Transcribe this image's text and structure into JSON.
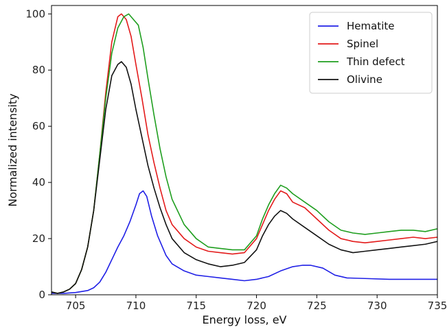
{
  "chart_data": {
    "type": "line",
    "title": "",
    "xlabel": "Energy loss, eV",
    "ylabel": "Normalized intensity",
    "xlim": [
      703,
      735
    ],
    "ylim": [
      0,
      103
    ],
    "x_ticks": [
      705,
      710,
      715,
      720,
      725,
      730,
      735
    ],
    "y_ticks": [
      0,
      20,
      40,
      60,
      80,
      100
    ],
    "grid": false,
    "legend": "top-right",
    "series": [
      {
        "name": "Hematite",
        "color": "#1f1fe6",
        "x": [
          703,
          704,
          705,
          706,
          706.5,
          707,
          707.5,
          708,
          708.5,
          709,
          709.5,
          710,
          710.3,
          710.6,
          710.9,
          711.3,
          711.8,
          712.5,
          713,
          714,
          715,
          716,
          717,
          718,
          719,
          720,
          721,
          722,
          723,
          723.8,
          724.5,
          725.5,
          726.5,
          727.5,
          729,
          731,
          733,
          735
        ],
        "y": [
          0.5,
          0.5,
          0.8,
          1.5,
          2.5,
          4.5,
          8,
          12.5,
          17,
          21,
          26,
          32,
          36,
          37,
          35,
          28,
          21,
          14,
          11,
          8.5,
          7,
          6.5,
          6,
          5.5,
          5,
          5.5,
          6.5,
          8.5,
          10,
          10.5,
          10.5,
          9.5,
          7,
          6,
          5.8,
          5.5,
          5.5,
          5.5
        ]
      },
      {
        "name": "Spinel",
        "color": "#e31a1a",
        "x": [
          703,
          703.5,
          704,
          704.5,
          705,
          705.5,
          706,
          706.5,
          707,
          707.5,
          708,
          708.5,
          708.8,
          709.2,
          709.6,
          710,
          710.5,
          711,
          711.5,
          712,
          712.5,
          713,
          714,
          715,
          716,
          717,
          718,
          719,
          720,
          720.5,
          721,
          721.5,
          722,
          722.5,
          723,
          724,
          725,
          726,
          727,
          728,
          729,
          730,
          731,
          732,
          733,
          734,
          735
        ],
        "y": [
          1,
          0.5,
          1,
          2,
          4,
          9,
          17,
          30,
          50,
          72,
          90,
          99,
          100,
          98,
          92,
          82,
          70,
          57,
          47,
          38,
          30,
          25,
          20,
          17,
          15.5,
          15,
          14.5,
          15,
          20,
          25,
          30,
          34,
          37,
          36,
          33,
          31,
          27,
          23,
          20,
          19,
          18.5,
          19,
          19.5,
          20,
          20.5,
          20,
          20.5
        ]
      },
      {
        "name": "Thin defect",
        "color": "#1e9e1e",
        "x": [
          703,
          703.5,
          704,
          704.5,
          705,
          705.5,
          706,
          706.5,
          707,
          707.5,
          708,
          708.5,
          709,
          709.4,
          709.8,
          710.2,
          710.6,
          711,
          711.5,
          712,
          712.5,
          713,
          714,
          715,
          716,
          717,
          718,
          719,
          720,
          720.5,
          721,
          721.5,
          722,
          722.5,
          723,
          724,
          725,
          726,
          727,
          728,
          729,
          730,
          731,
          732,
          733,
          734,
          735
        ],
        "y": [
          1,
          0.5,
          1,
          2,
          4,
          9,
          17,
          30,
          50,
          70,
          86,
          95,
          99,
          100,
          98,
          96,
          88,
          77,
          64,
          52,
          42,
          34,
          25,
          20,
          17,
          16.5,
          16,
          16,
          21,
          27,
          32,
          36,
          39,
          38,
          36,
          33,
          30,
          26,
          23,
          22,
          21.5,
          22,
          22.5,
          23,
          23,
          22.5,
          23.5
        ]
      },
      {
        "name": "Olivine",
        "color": "#111111",
        "x": [
          703,
          703.5,
          704,
          704.5,
          705,
          705.5,
          706,
          706.5,
          707,
          707.5,
          708,
          708.5,
          708.8,
          709.2,
          709.6,
          710,
          710.5,
          711,
          711.5,
          712,
          712.5,
          713,
          714,
          715,
          716,
          717,
          718,
          719,
          720,
          720.5,
          721,
          721.5,
          722,
          722.5,
          723,
          724,
          725,
          726,
          727,
          728,
          729,
          730,
          731,
          732,
          733,
          734,
          735
        ],
        "y": [
          1,
          0.5,
          1,
          2,
          4,
          9,
          17,
          30,
          48,
          66,
          78,
          82,
          83,
          81,
          75,
          66,
          56,
          46,
          38,
          31,
          25,
          20,
          15,
          12.5,
          11,
          10,
          10.5,
          11.5,
          16,
          21,
          25,
          28,
          30,
          29,
          27,
          24,
          21,
          18,
          16,
          15,
          15.5,
          16,
          16.5,
          17,
          17.5,
          18,
          19
        ]
      }
    ]
  }
}
